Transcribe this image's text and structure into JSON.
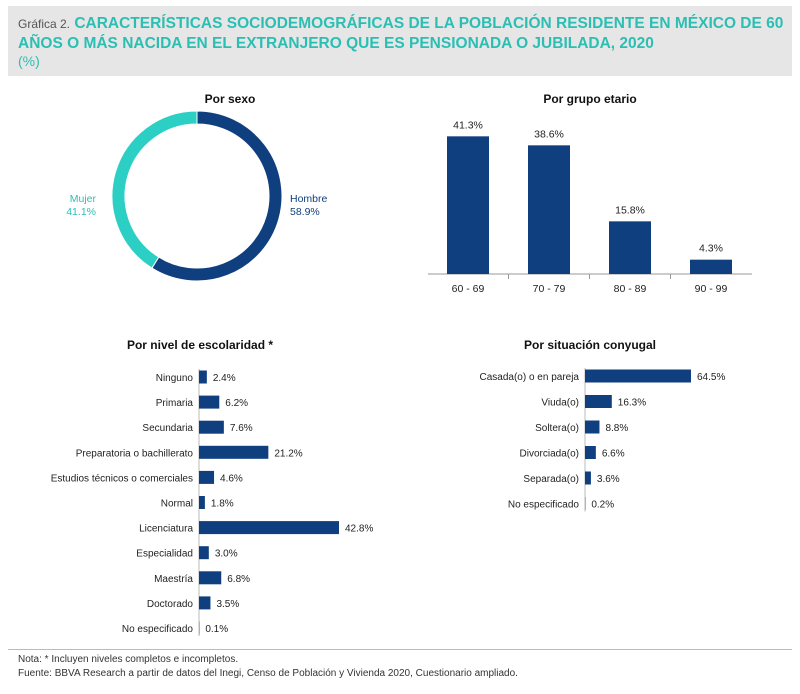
{
  "header": {
    "prefix": "Gráfica 2.",
    "title": "CARACTERÍSTICAS SOCIODEMOGRÁFICAS DE LA POBLACIÓN RESIDENTE EN MÉXICO DE 60 AÑOS O MÁS NACIDA EN EL EXTRANJERO QUE ES PENSIONADA O JUBILADA, 2020",
    "unit": "(%)"
  },
  "colors": {
    "navy": "#0f3f7f",
    "teal": "#2bcfc4",
    "accent_text": "#2bbfb4"
  },
  "chart_data": [
    {
      "type": "pie",
      "title": "Por sexo",
      "donut": true,
      "slices": [
        {
          "label": "Hombre",
          "value": 58.9,
          "value_label": "58.9%",
          "color": "#0f3f7f"
        },
        {
          "label": "Mujer",
          "value": 41.1,
          "value_label": "41.1%",
          "color": "#2bcfc4"
        }
      ]
    },
    {
      "type": "bar",
      "title": "Por grupo etario",
      "categories": [
        "60 - 69",
        "70 - 79",
        "80 - 89",
        "90 - 99"
      ],
      "values": [
        41.3,
        38.6,
        15.8,
        4.3
      ],
      "value_labels": [
        "41.3%",
        "38.6%",
        "15.8%",
        "4.3%"
      ],
      "ylim": [
        0,
        45
      ]
    },
    {
      "type": "bar",
      "orientation": "horizontal",
      "title": "Por nivel de escolaridad *",
      "categories": [
        "Ninguno",
        "Primaria",
        "Secundaria",
        "Preparatoria o bachillerato",
        "Estudios técnicos o comerciales",
        "Normal",
        "Licenciatura",
        "Especialidad",
        "Maestría",
        "Doctorado",
        "No especificado"
      ],
      "values": [
        2.4,
        6.2,
        7.6,
        21.2,
        4.6,
        1.8,
        42.8,
        3.0,
        6.8,
        3.5,
        0.1
      ],
      "value_labels": [
        "2.4%",
        "6.2%",
        "7.6%",
        "21.2%",
        "4.6%",
        "1.8%",
        "42.8%",
        "3.0%",
        "6.8%",
        "3.5%",
        "0.1%"
      ],
      "xlim": [
        0,
        45
      ]
    },
    {
      "type": "bar",
      "orientation": "horizontal",
      "title": "Por situación conyugal",
      "categories": [
        "Casada(o) o en pareja",
        "Viuda(o)",
        "Soltera(o)",
        "Divorciada(o)",
        "Separada(o)",
        "No especificado"
      ],
      "values": [
        64.5,
        16.3,
        8.8,
        6.6,
        3.6,
        0.2
      ],
      "value_labels": [
        "64.5%",
        "16.3%",
        "8.8%",
        "6.6%",
        "3.6%",
        "0.2%"
      ],
      "xlim": [
        0,
        65
      ]
    }
  ],
  "footer": {
    "note": "Nota: * Incluyen niveles completos e incompletos.",
    "source": "Fuente: BBVA Research a partir de datos del Inegi, Censo de Población y Vivienda 2020, Cuestionario ampliado."
  }
}
